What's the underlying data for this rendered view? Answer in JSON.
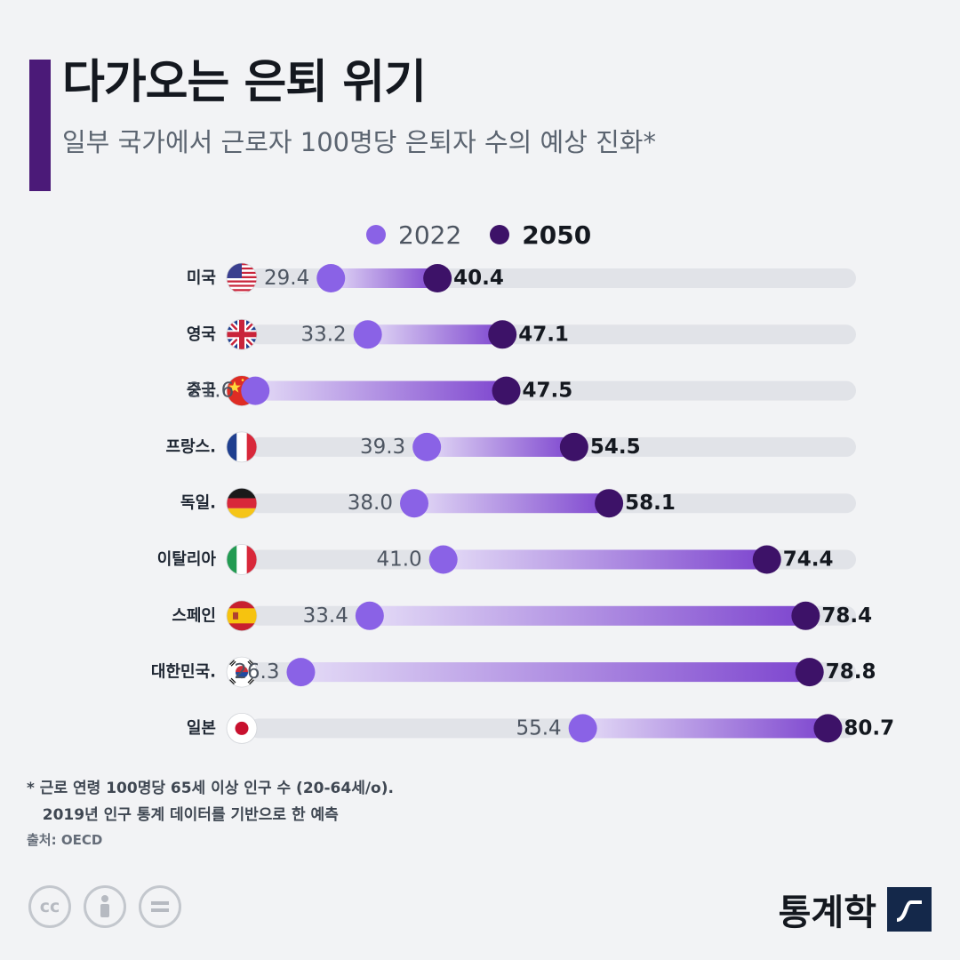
{
  "header": {
    "title": "다가오는 은퇴 위기",
    "subtitle": "일부 국가에서 근로자 100명당 은퇴자 수의 예상 진화*"
  },
  "legend": {
    "label_2022": "2022",
    "label_2050": "2050"
  },
  "colors": {
    "dot_2022": "#8a62e6",
    "dot_2050": "#3d1268",
    "track": "#e1e3e8",
    "accent": "#4b1a78"
  },
  "chart_data": {
    "type": "dumbbell",
    "title": "다가오는 은퇴 위기",
    "subtitle": "일부 국가에서 근로자 100명당 은퇴자 수의 예상 진화*",
    "xlim": [
      0,
      90
    ],
    "categories": [
      "미국",
      "영국",
      "중국",
      "프랑스.",
      "독일.",
      "이탈리아",
      "스페인",
      "대한민국.",
      "일본"
    ],
    "flags": [
      "us-flag-icon",
      "uk-flag-icon",
      "china-flag-icon",
      "france-flag-icon",
      "germany-flag-icon",
      "italy-flag-icon",
      "spain-flag-icon",
      "south-korea-flag-icon",
      "japan-flag-icon"
    ],
    "series": [
      {
        "name": "2022",
        "values": [
          29.4,
          33.2,
          21.6,
          39.3,
          38.0,
          41.0,
          33.4,
          26.3,
          55.4
        ]
      },
      {
        "name": "2050",
        "values": [
          40.4,
          47.1,
          47.5,
          54.5,
          58.1,
          74.4,
          78.4,
          78.8,
          80.7
        ]
      }
    ],
    "labels_2022": [
      "29.4",
      "33.2",
      "21.6",
      "39.3",
      "38.0",
      "41.0",
      "33.4",
      "26.3",
      "55.4"
    ],
    "labels_2050": [
      "40.4",
      "47.1",
      "47.5",
      "54.5",
      "58.1",
      "74.4",
      "78.4",
      "78.8",
      "80.7"
    ],
    "legend": "top-center"
  },
  "footer": {
    "footnote": "* 근로 연령 100명당 65세 이상 인구 수 (20-64세/o).\n   2019년 인구 통계 데이터를 기반으로 한 예측",
    "source": "출처: OECD",
    "cc_icons": [
      "creative-commons-icon",
      "attribution-icon",
      "no-derivatives-icon"
    ],
    "brand": "통계학"
  }
}
